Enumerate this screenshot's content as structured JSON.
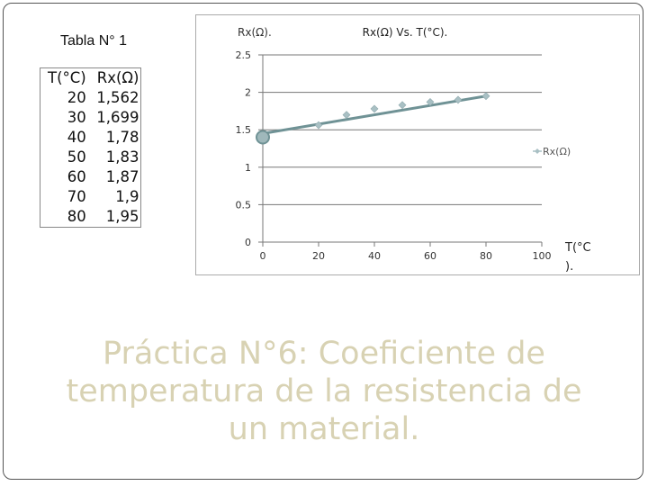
{
  "table": {
    "caption": "Tabla N° 1",
    "headers": [
      "T(°C)",
      "Rx(Ω)"
    ],
    "rows": [
      [
        "20",
        "1,562"
      ],
      [
        "30",
        "1,699"
      ],
      [
        "40",
        "1,78"
      ],
      [
        "50",
        "1,83"
      ],
      [
        "60",
        "1,87"
      ],
      [
        "70",
        "1,9"
      ],
      [
        "80",
        "1,95"
      ]
    ]
  },
  "chart_data": {
    "type": "scatter",
    "title": "Rx(Ω) Vs. T(°C).",
    "ylabel": "Rx(Ω).",
    "xlabel": "T(°C ).",
    "xlim": [
      0,
      100
    ],
    "ylim": [
      0,
      2.5
    ],
    "xticks": [
      0,
      20,
      40,
      60,
      80,
      100
    ],
    "yticks": [
      0,
      0.5,
      1,
      1.5,
      2,
      2.5
    ],
    "ytick_labels": [
      "0",
      "0.5",
      "1",
      "1.5",
      "2",
      "2.5"
    ],
    "legend": "right",
    "series": [
      {
        "name": "Rx(Ω)",
        "x": [
          20,
          30,
          40,
          50,
          60,
          70,
          80
        ],
        "y": [
          1.562,
          1.699,
          1.78,
          1.83,
          1.87,
          1.9,
          1.95
        ]
      }
    ],
    "trendline": {
      "x": [
        0,
        80
      ],
      "y": [
        1.45,
        1.95
      ]
    },
    "marked_point": {
      "x": 0,
      "y": 1.4
    },
    "colors": {
      "marker": "#a9c0c4",
      "trendline": "#6f9295"
    }
  },
  "slide": {
    "title_lines": [
      "Práctica N°6: Coeficiente de",
      "temperatura de la resistencia de",
      "un material."
    ]
  }
}
